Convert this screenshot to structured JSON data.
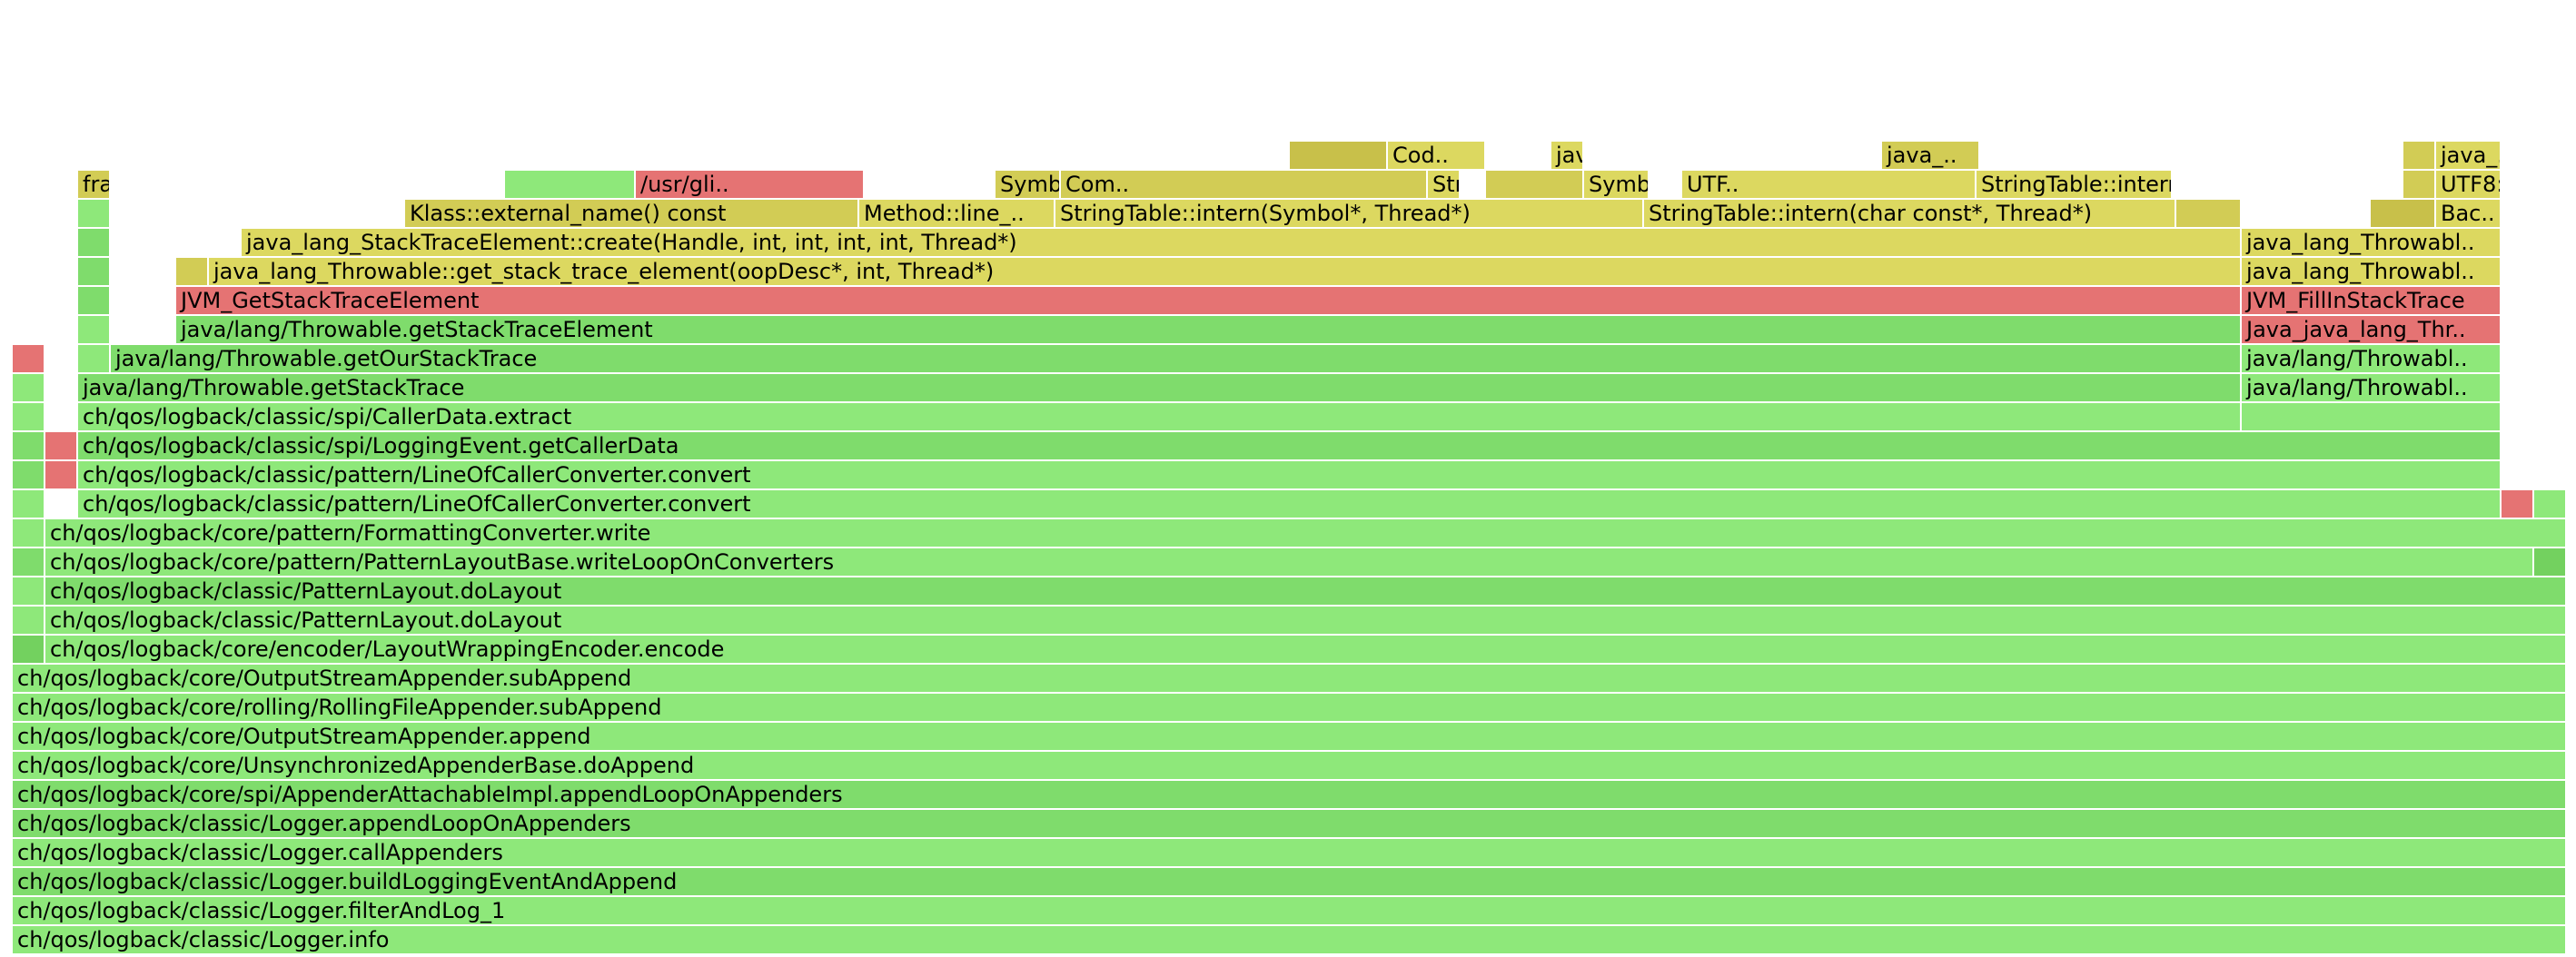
{
  "palette": {
    "green": "#8ee87a",
    "green2": "#7fdc6c",
    "green3": "#73d15f",
    "red": "#e57373",
    "red2": "#e07070",
    "yellow": "#dcd860",
    "yellow2": "#d2cc55",
    "yellow3": "#c8c04a"
  },
  "frames": [
    {
      "label": "ch/qos/logback/classic/Logger.info",
      "c": "green"
    },
    {
      "label": "ch/qos/logback/classic/Logger.filterAndLog_1",
      "c": "green"
    },
    {
      "label": "ch/qos/logback/classic/Logger.buildLoggingEventAndAppend",
      "c": "green2"
    },
    {
      "label": "ch/qos/logback/classic/Logger.callAppenders",
      "c": "green"
    },
    {
      "label": "ch/qos/logback/classic/Logger.appendLoopOnAppenders",
      "c": "green2"
    },
    {
      "label": "ch/qos/logback/core/spi/AppenderAttachableImpl.appendLoopOnAppenders",
      "c": "green2"
    },
    {
      "label": "ch/qos/logback/core/UnsynchronizedAppenderBase.doAppend",
      "c": "green"
    },
    {
      "label": "ch/qos/logback/core/OutputStreamAppender.append",
      "c": "green"
    },
    {
      "label": "ch/qos/logback/core/rolling/RollingFileAppender.subAppend",
      "c": "green"
    },
    {
      "label": "ch/qos/logback/core/OutputStreamAppender.subAppend",
      "c": "green"
    },
    {
      "label": "",
      "c": "green3"
    },
    {
      "label": "ch/qos/logback/core/encoder/LayoutWrappingEncoder.encode",
      "c": "green"
    },
    {
      "label": "",
      "c": "green"
    },
    {
      "label": "ch/qos/logback/classic/PatternLayout.doLayout",
      "c": "green"
    },
    {
      "label": "",
      "c": "green"
    },
    {
      "label": "ch/qos/logback/classic/PatternLayout.doLayout",
      "c": "green2"
    },
    {
      "label": "",
      "c": "green2"
    },
    {
      "label": "ch/qos/logback/core/pattern/PatternLayoutBase.writeLoopOnConverters",
      "c": "green"
    },
    {
      "label": "",
      "c": "green3"
    },
    {
      "label": "",
      "c": "green"
    },
    {
      "label": "ch/qos/logback/core/pattern/FormattingConverter.write",
      "c": "green"
    },
    {
      "label": "",
      "c": "green"
    },
    {
      "label": "ch/qos/logback/classic/pattern/LineOfCallerConverter.convert",
      "c": "green"
    },
    {
      "label": "",
      "c": "red"
    },
    {
      "label": "",
      "c": "green"
    },
    {
      "label": "",
      "c": "green2"
    },
    {
      "label": "",
      "c": "red"
    },
    {
      "label": "ch/qos/logback/classic/pattern/LineOfCallerConverter.convert",
      "c": "green"
    },
    {
      "label": "",
      "c": "green2"
    },
    {
      "label": "",
      "c": "red"
    },
    {
      "label": "ch/qos/logback/classic/spi/LoggingEvent.getCallerData",
      "c": "green2"
    },
    {
      "label": "",
      "c": "green"
    },
    {
      "label": "ch/qos/logback/classic/spi/CallerData.extract",
      "c": "green"
    },
    {
      "label": "",
      "c": "green"
    },
    {
      "label": "",
      "c": "green"
    },
    {
      "label": "java/lang/Throwable.getStackTrace",
      "c": "green2"
    },
    {
      "label": "java/lang/Throwabl..",
      "c": "green"
    },
    {
      "label": "",
      "c": "red"
    },
    {
      "label": "",
      "c": "green"
    },
    {
      "label": "java/lang/Throwable.getOurStackTrace",
      "c": "green2"
    },
    {
      "label": "java/lang/Throwabl..",
      "c": "green"
    },
    {
      "label": "",
      "c": "green"
    },
    {
      "label": "java/lang/Throwable.getStackTraceElement",
      "c": "green2"
    },
    {
      "label": "Java_java_lang_Thr..",
      "c": "red"
    },
    {
      "label": "",
      "c": "green2"
    },
    {
      "label": "JVM_GetStackTraceElement",
      "c": "red"
    },
    {
      "label": "JVM_FillInStackTrace",
      "c": "red"
    },
    {
      "label": "",
      "c": "green2"
    },
    {
      "label": "",
      "c": "yellow2"
    },
    {
      "label": "java_lang_Throwable::get_stack_trace_element(oopDesc*, int, Thread*)",
      "c": "yellow"
    },
    {
      "label": "java_lang_Throwabl..",
      "c": "yellow"
    },
    {
      "label": "",
      "c": "green2"
    },
    {
      "label": "java_lang_StackTraceElement::create(Handle, int, int, int, int, Thread*)",
      "c": "yellow"
    },
    {
      "label": "java_lang_Throwabl..",
      "c": "yellow"
    },
    {
      "label": "",
      "c": "green"
    },
    {
      "label": "Klass::external_name() const",
      "c": "yellow2"
    },
    {
      "label": "Method::line_..",
      "c": "yellow"
    },
    {
      "label": "StringTable::intern(Symbol*, Thread*)",
      "c": "yellow"
    },
    {
      "label": "StringTable::intern(char const*, Thread*)",
      "c": "yellow"
    },
    {
      "label": "",
      "c": "yellow2"
    },
    {
      "label": "",
      "c": "yellow3"
    },
    {
      "label": "Bac..",
      "c": "yellow"
    },
    {
      "label": "fra..",
      "c": "yellow2"
    },
    {
      "label": "",
      "c": "green"
    },
    {
      "label": "/usr/gli..",
      "c": "red"
    },
    {
      "label": "Symbol::as_klass..",
      "c": "yellow2"
    },
    {
      "label": "Com..",
      "c": "yellow2"
    },
    {
      "label": "StringTable::intern(Handle, uns..",
      "c": "yellow"
    },
    {
      "label": "",
      "c": "yellow2"
    },
    {
      "label": "Symbo..",
      "c": "yellow"
    },
    {
      "label": "UTF..",
      "c": "yellow"
    },
    {
      "label": "StringTable::intern(H..",
      "c": "yellow"
    },
    {
      "label": "",
      "c": "yellow2"
    },
    {
      "label": "UTF8::un..",
      "c": "yellow"
    },
    {
      "label": "",
      "c": "yellow3"
    },
    {
      "label": "Cod..",
      "c": "yellow"
    },
    {
      "label": "java_..",
      "c": "yellow"
    },
    {
      "label": "java_..",
      "c": "yellow2"
    },
    {
      "label": "",
      "c": "yellow2"
    },
    {
      "label": "java_..",
      "c": "yellow"
    },
    {
      "label": "",
      "c": "yellow3"
    },
    {
      "label": "Cod..",
      "c": "yellow"
    }
  ]
}
